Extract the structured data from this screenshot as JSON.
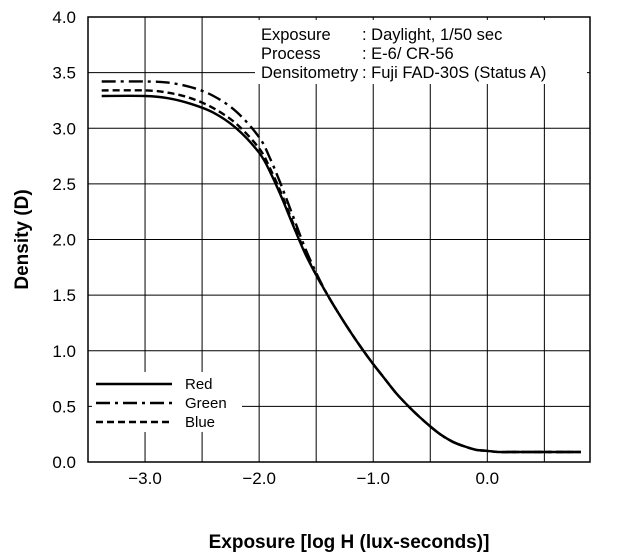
{
  "chart_data": {
    "type": "line",
    "xlabel": "Exposure [log H (lux-seconds)]",
    "ylabel": "Density (D)",
    "xlim": [
      -3.5,
      0.9
    ],
    "ylim": [
      0.0,
      4.0
    ],
    "x_ticks": [
      -3.0,
      -2.0,
      -1.0,
      0.0
    ],
    "x_tick_labels": [
      "−3.0",
      "−2.0",
      "−1.0",
      "0.0"
    ],
    "y_ticks": [
      0.0,
      0.5,
      1.0,
      1.5,
      2.0,
      2.5,
      3.0,
      3.5,
      4.0
    ],
    "y_tick_labels": [
      "0.0",
      "0.5",
      "1.0",
      "1.5",
      "2.0",
      "2.5",
      "3.0",
      "3.5",
      "4.0"
    ],
    "grid": true,
    "legend_position": "bottom-left",
    "annotation": [
      {
        "key": "Exposure",
        "value": ": Daylight, 1/50 sec"
      },
      {
        "key": "Process",
        "value": ": E-6/ CR-56"
      },
      {
        "key": "Densitometry",
        "value": ": Fuji FAD-30S (Status A)"
      }
    ],
    "series": [
      {
        "name": "Red",
        "dash": "solid",
        "x": [
          -3.38,
          -3.0,
          -2.8,
          -2.6,
          -2.4,
          -2.2,
          -2.0,
          -1.9,
          -1.8,
          -1.7,
          -1.6,
          -1.5,
          -1.4,
          -1.3,
          -1.2,
          -1.1,
          -1.0,
          -0.9,
          -0.8,
          -0.7,
          -0.6,
          -0.5,
          -0.4,
          -0.3,
          -0.2,
          -0.1,
          0.0,
          0.1,
          0.2,
          0.4,
          0.6,
          0.82
        ],
        "y": [
          3.29,
          3.29,
          3.27,
          3.22,
          3.14,
          3.0,
          2.78,
          2.6,
          2.37,
          2.12,
          1.88,
          1.68,
          1.5,
          1.33,
          1.17,
          1.02,
          0.88,
          0.75,
          0.62,
          0.51,
          0.41,
          0.32,
          0.24,
          0.18,
          0.14,
          0.11,
          0.1,
          0.09,
          0.09,
          0.09,
          0.09,
          0.09
        ]
      },
      {
        "name": "Green",
        "dash": "long-dash",
        "x": [
          -3.38,
          -3.0,
          -2.8,
          -2.6,
          -2.4,
          -2.2,
          -2.0,
          -1.9,
          -1.8,
          -1.7,
          -1.6,
          -1.5,
          -1.4,
          -1.3,
          -1.2,
          -1.1,
          -1.0,
          -0.9,
          -0.8,
          -0.7,
          -0.6,
          -0.5,
          -0.4,
          -0.3,
          -0.2,
          -0.1,
          0.0,
          0.1,
          0.2,
          0.4,
          0.6,
          0.82
        ],
        "y": [
          3.42,
          3.42,
          3.41,
          3.37,
          3.29,
          3.15,
          2.92,
          2.72,
          2.47,
          2.2,
          1.93,
          1.7,
          1.5,
          1.33,
          1.17,
          1.02,
          0.88,
          0.75,
          0.62,
          0.51,
          0.41,
          0.32,
          0.24,
          0.18,
          0.14,
          0.11,
          0.1,
          0.09,
          0.09,
          0.09,
          0.09,
          0.09
        ]
      },
      {
        "name": "Blue",
        "dash": "short-dash",
        "x": [
          -3.38,
          -3.0,
          -2.8,
          -2.6,
          -2.4,
          -2.2,
          -2.0,
          -1.9,
          -1.8,
          -1.7,
          -1.6,
          -1.5,
          -1.4,
          -1.3,
          -1.2,
          -1.1,
          -1.0,
          -0.9,
          -0.8,
          -0.7,
          -0.6,
          -0.5,
          -0.4,
          -0.3,
          -0.2,
          -0.1,
          0.0,
          0.1,
          0.2,
          0.4,
          0.6,
          0.82
        ],
        "y": [
          3.34,
          3.34,
          3.32,
          3.27,
          3.18,
          3.04,
          2.82,
          2.63,
          2.4,
          2.14,
          1.89,
          1.68,
          1.5,
          1.33,
          1.17,
          1.02,
          0.88,
          0.75,
          0.62,
          0.51,
          0.41,
          0.32,
          0.24,
          0.18,
          0.14,
          0.11,
          0.1,
          0.09,
          0.09,
          0.09,
          0.09,
          0.09
        ]
      }
    ]
  }
}
